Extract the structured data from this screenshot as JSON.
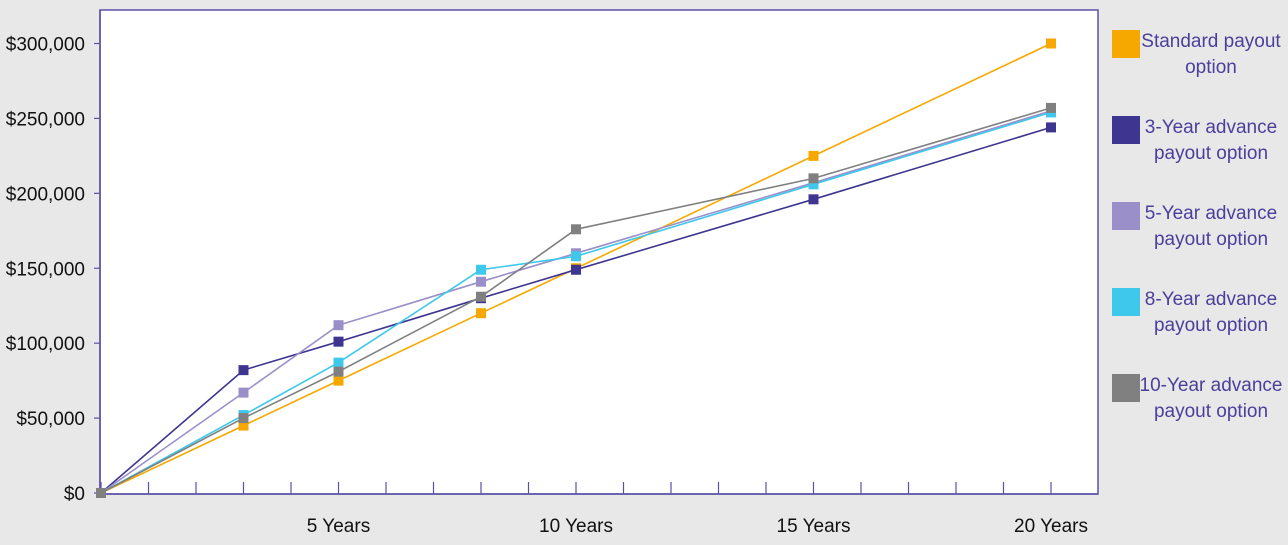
{
  "chart_data": {
    "type": "line",
    "x_tick_values": [
      0,
      1,
      2,
      3,
      4,
      5,
      6,
      7,
      8,
      9,
      10,
      11,
      12,
      13,
      14,
      15,
      16,
      17,
      18,
      19,
      20
    ],
    "x_labels": [
      {
        "x": 5,
        "label": "5 Years"
      },
      {
        "x": 10,
        "label": "10 Years"
      },
      {
        "x": 15,
        "label": "15 Years"
      },
      {
        "x": 20,
        "label": "20 Years"
      }
    ],
    "y_ticks": [
      {
        "value": 0,
        "label": "$0"
      },
      {
        "value": 50000,
        "label": "$50,000"
      },
      {
        "value": 100000,
        "label": "$100,000"
      },
      {
        "value": 150000,
        "label": "$150,000"
      },
      {
        "value": 200000,
        "label": "$200,000"
      },
      {
        "value": 250000,
        "label": "$250,000"
      },
      {
        "value": 300000,
        "label": "$300,000"
      }
    ],
    "xlim": [
      0,
      21
    ],
    "ylim": [
      0,
      325000
    ],
    "grid": false,
    "legend_position": "right",
    "series": [
      {
        "name": "Standard payout option",
        "color": "#f7a800",
        "x": [
          0,
          3,
          5,
          8,
          10,
          15,
          20
        ],
        "values": [
          0,
          45000,
          75000,
          120000,
          150000,
          225000,
          300000
        ]
      },
      {
        "name": "3-Year advance payout option",
        "color": "#3d3590",
        "x": [
          0,
          3,
          5,
          8,
          10,
          15,
          20
        ],
        "values": [
          0,
          82000,
          101000,
          130000,
          149000,
          196000,
          244000
        ]
      },
      {
        "name": "5-Year advance payout option",
        "color": "#9b8fc9",
        "x": [
          0,
          3,
          5,
          8,
          10,
          15,
          20
        ],
        "values": [
          0,
          67000,
          112000,
          141000,
          160000,
          207000,
          255000
        ]
      },
      {
        "name": "8-Year advance payout option",
        "color": "#3ec8ec",
        "x": [
          0,
          3,
          5,
          8,
          10,
          15,
          20
        ],
        "values": [
          0,
          52000,
          87000,
          149000,
          158000,
          206000,
          254000
        ]
      },
      {
        "name": "10-Year advance payout option",
        "color": "#808080",
        "x": [
          0,
          3,
          5,
          8,
          10,
          15,
          20
        ],
        "values": [
          0,
          50000,
          81000,
          131000,
          176000,
          210000,
          257000
        ]
      }
    ],
    "legend": [
      {
        "line1": "Standard payout",
        "line2": "option"
      },
      {
        "line1": "3-Year advance",
        "line2": "payout option"
      },
      {
        "line1": "5-Year advance",
        "line2": "payout option"
      },
      {
        "line1": "8-Year advance",
        "line2": "payout option"
      },
      {
        "line1": "10-Year advance",
        "line2": "payout option"
      }
    ],
    "styles": {
      "axis_color": "#5b50a8",
      "legend_text_color": "#4b3f9c",
      "label_color": "#111111",
      "plot_background": "#ffffff"
    }
  }
}
